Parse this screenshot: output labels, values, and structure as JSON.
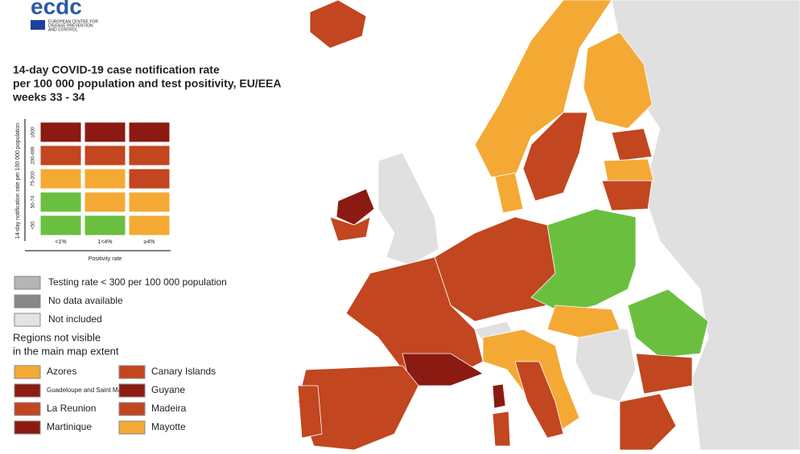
{
  "logo": {
    "name": "ecdc",
    "subtitle_lines": [
      "EUROPEAN CENTRE FOR",
      "DISEASE PREVENTION",
      "AND CONTROL"
    ]
  },
  "title_lines": [
    "14-day COVID-19 case notification rate",
    "per 100 000 population and test positivity, EU/EEA",
    "weeks 33 - 34"
  ],
  "matrix": {
    "y_label": "14-day notification rate per 100 000 population",
    "row_labels": [
      "≥500",
      "200-499",
      "75-200",
      "50-74",
      "<50"
    ],
    "col_labels": [
      "<1%",
      "1<4%",
      "≥4%"
    ],
    "x_label": "Positivity rate",
    "cells": [
      [
        "#8b1a12",
        "#8b1a12",
        "#8b1a12"
      ],
      [
        "#c2461f",
        "#c2461f",
        "#c2461f"
      ],
      [
        "#f4a935",
        "#f4a935",
        "#c2461f"
      ],
      [
        "#6bbf3f",
        "#f4a935",
        "#f4a935"
      ],
      [
        "#6bbf3f",
        "#6bbf3f",
        "#f4a935"
      ]
    ]
  },
  "other_legend": [
    {
      "label": "Testing rate < 300 per 100 000 population",
      "color": "#b5b5b5"
    },
    {
      "label": "No data available",
      "color": "#888888"
    },
    {
      "label": "Not included",
      "color": "#e3e3e3"
    }
  ],
  "regions_title_lines": [
    "Regions not visible",
    "in the main map extent"
  ],
  "regions": [
    {
      "label": "Azores",
      "color": "#f4a935"
    },
    {
      "label": "Canary Islands",
      "color": "#c2461f"
    },
    {
      "label": "Guadeloupe and Saint Martin",
      "color": "#8b1a12"
    },
    {
      "label": "Guyane",
      "color": "#8b1a12"
    },
    {
      "label": "La Reunion",
      "color": "#c2461f"
    },
    {
      "label": "Madeira",
      "color": "#c2461f"
    },
    {
      "label": "Martinique",
      "color": "#8b1a12"
    },
    {
      "label": "Mayotte",
      "color": "#f4a935"
    }
  ]
}
